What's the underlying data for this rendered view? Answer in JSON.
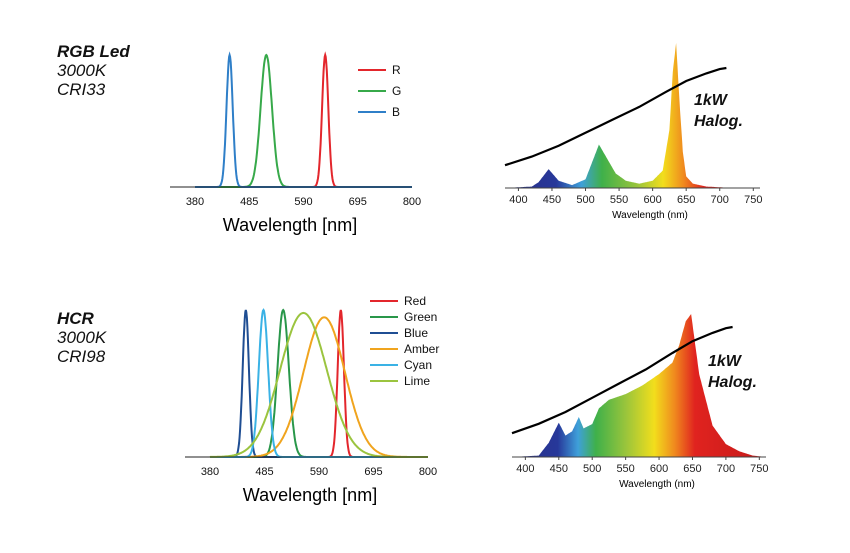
{
  "labels": {
    "top": {
      "title": "RGB Led",
      "cct": "3000K",
      "cri": "CRI33"
    },
    "bottom": {
      "title": "HCR",
      "cct": "3000K",
      "cri": "CRI98"
    }
  },
  "chart_data": [
    {
      "id": "rgb",
      "type": "line",
      "title": "RGB Led",
      "xlabel": "Wavelength [nm]",
      "ylabel": "",
      "xlim": [
        380,
        800
      ],
      "xticks": [
        "380",
        "485",
        "590",
        "695",
        "800"
      ],
      "legend": "top-right",
      "series": [
        {
          "name": "R",
          "color": "#e3262c",
          "peak_nm": 632,
          "width_nm": 6,
          "height": 1.0
        },
        {
          "name": "G",
          "color": "#37a94a",
          "peak_nm": 518,
          "width_nm": 11,
          "height": 1.0
        },
        {
          "name": "B",
          "color": "#2f7fc8",
          "peak_nm": 447,
          "width_nm": 6,
          "height": 1.0
        }
      ]
    },
    {
      "id": "hcr",
      "type": "line",
      "title": "HCR",
      "xlabel": "Wavelength [nm]",
      "ylabel": "",
      "xlim": [
        380,
        800
      ],
      "xticks": [
        "380",
        "485",
        "590",
        "695",
        "800"
      ],
      "legend": "top-right",
      "series": [
        {
          "name": "Red",
          "color": "#e3262c",
          "peak_nm": 632,
          "width_nm": 6,
          "height": 1.0
        },
        {
          "name": "Green",
          "color": "#29974a",
          "peak_nm": 521,
          "width_nm": 11,
          "height": 1.0
        },
        {
          "name": "Blue",
          "color": "#1f4e93",
          "peak_nm": 449,
          "width_nm": 6,
          "height": 1.0
        },
        {
          "name": "Amber",
          "color": "#f0a41e",
          "peak_nm": 600,
          "width_nm": 40,
          "height": 0.95
        },
        {
          "name": "Cyan",
          "color": "#3ab2e5",
          "peak_nm": 483,
          "width_nm": 9,
          "height": 1.0
        },
        {
          "name": "Lime",
          "color": "#9bc43f",
          "peak_nm": 560,
          "width_nm": 45,
          "height": 0.98
        }
      ]
    },
    {
      "id": "halogen-top",
      "type": "area",
      "title": "1kW Halog.",
      "xlabel": "Wavelength (nm)",
      "ylabel": "",
      "xlim": [
        380,
        760
      ],
      "xticks": [
        "400",
        "450",
        "500",
        "550",
        "600",
        "650",
        "700",
        "750"
      ],
      "halogen_curve": {
        "x": [
          380,
          420,
          460,
          500,
          540,
          580,
          620,
          650,
          680,
          700,
          710
        ],
        "y": [
          0.1,
          0.18,
          0.28,
          0.4,
          0.52,
          0.64,
          0.78,
          0.88,
          0.95,
          0.99,
          1.0
        ]
      },
      "spectrum": {
        "x": [
          380,
          420,
          430,
          445,
          460,
          480,
          500,
          510,
          520,
          530,
          545,
          560,
          580,
          600,
          615,
          625,
          630,
          635,
          640,
          645,
          650,
          660,
          680,
          720,
          760
        ],
        "y": [
          0.0,
          0.01,
          0.04,
          0.13,
          0.05,
          0.02,
          0.06,
          0.18,
          0.3,
          0.22,
          0.1,
          0.05,
          0.03,
          0.05,
          0.12,
          0.4,
          0.8,
          1.0,
          0.6,
          0.25,
          0.08,
          0.03,
          0.01,
          0.0,
          0.0
        ]
      }
    },
    {
      "id": "halogen-bottom",
      "type": "area",
      "title": "1kW Halog.",
      "xlabel": "Wavelength (nm)",
      "ylabel": "",
      "xlim": [
        380,
        760
      ],
      "xticks": [
        "400",
        "450",
        "500",
        "550",
        "600",
        "650",
        "700",
        "750"
      ],
      "halogen_curve": {
        "x": [
          380,
          420,
          460,
          500,
          540,
          580,
          620,
          650,
          680,
          700,
          710
        ],
        "y": [
          0.1,
          0.18,
          0.28,
          0.4,
          0.52,
          0.64,
          0.78,
          0.88,
          0.95,
          0.99,
          1.0
        ]
      },
      "spectrum": {
        "x": [
          380,
          420,
          435,
          450,
          460,
          470,
          480,
          487,
          500,
          510,
          525,
          550,
          575,
          600,
          610,
          620,
          630,
          640,
          648,
          660,
          680,
          700,
          720,
          740,
          760
        ],
        "y": [
          0.0,
          0.01,
          0.1,
          0.24,
          0.15,
          0.18,
          0.28,
          0.2,
          0.23,
          0.34,
          0.4,
          0.44,
          0.5,
          0.58,
          0.62,
          0.66,
          0.78,
          0.95,
          1.0,
          0.58,
          0.22,
          0.09,
          0.04,
          0.01,
          0.0
        ]
      }
    }
  ]
}
